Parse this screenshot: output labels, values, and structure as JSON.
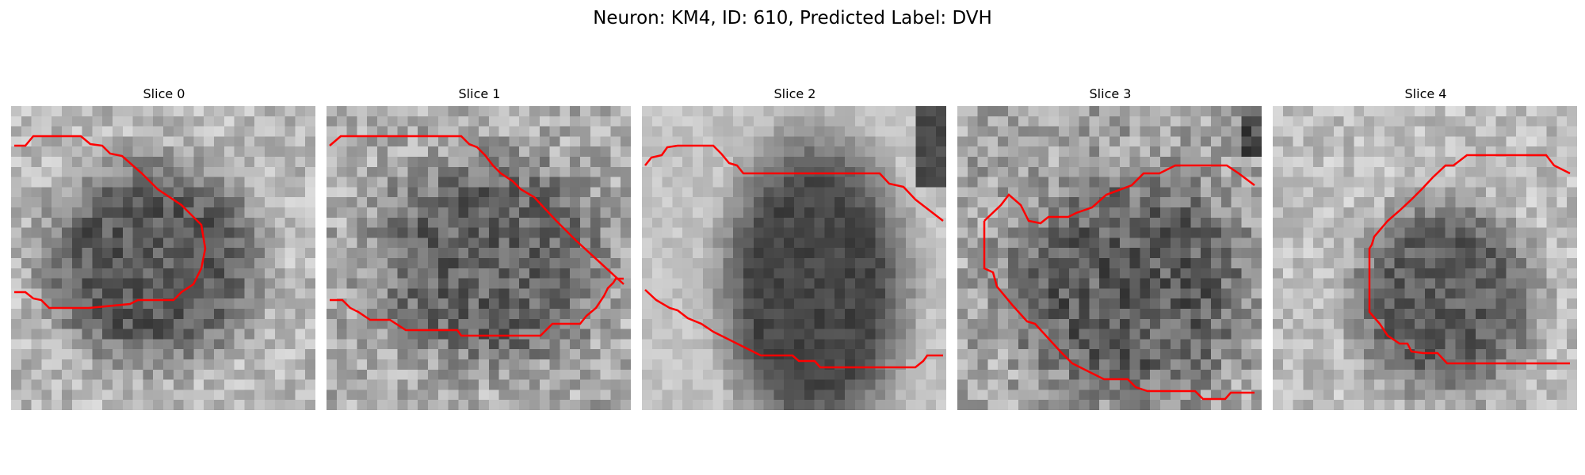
{
  "figure": {
    "title": "Neuron: KM4, ID: 610, Predicted Label: DVH"
  },
  "colors": {
    "contour": "#ff0000",
    "image_colormap": "gray"
  },
  "panels": [
    {
      "title": "Slice 0",
      "image": "grayscale microscopy crop with bright background and a darker neuron region on the left-center"
    },
    {
      "title": "Slice 1",
      "image": "grayscale microscopy crop with mottled texture and a neuron region across the center"
    },
    {
      "title": "Slice 2",
      "image": "grayscale microscopy crop with a large dark neuron body in the center and bright right edge"
    },
    {
      "title": "Slice 3",
      "image": "grayscale microscopy crop with noisy texture and a darker neuron region center-right"
    },
    {
      "title": "Slice 4",
      "image": "grayscale microscopy crop with light background and a darker neuron region right-center"
    }
  ]
}
